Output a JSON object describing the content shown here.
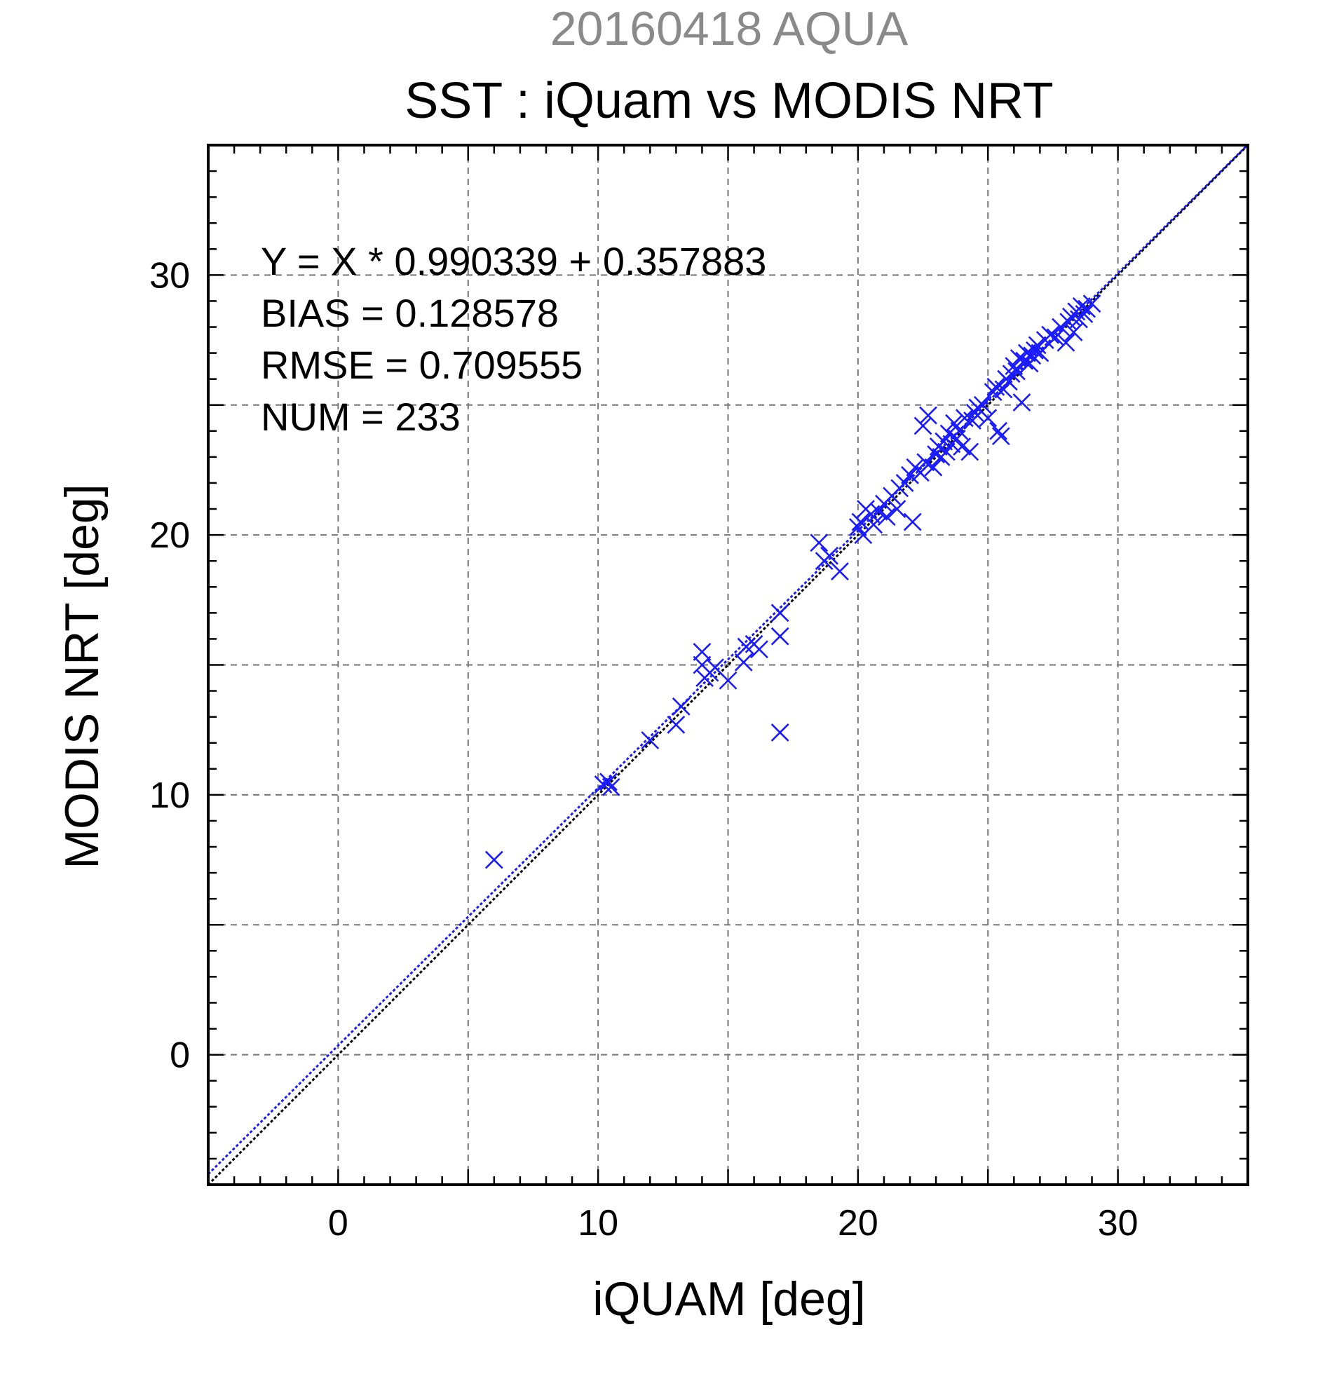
{
  "chart_data": {
    "type": "scatter",
    "supertitle": "20160418 AQUA",
    "title": "SST : iQuam vs MODIS NRT",
    "xlabel": "iQUAM [deg]",
    "ylabel": "MODIS NRT [deg]",
    "xlim": [
      -5,
      35
    ],
    "ylim": [
      -5,
      35
    ],
    "xticks": [
      0,
      10,
      20,
      30
    ],
    "yticks": [
      0,
      10,
      20,
      30
    ],
    "grid": true,
    "marker": "x",
    "point_color": "#1a1aff",
    "fit_line_color": "#1a1aff",
    "identity_line_color": "#000000",
    "fit": {
      "slope": 0.990339,
      "intercept": 0.357883
    },
    "stats": [
      "Y = X * 0.990339 + 0.357883",
      "BIAS = 0.128578",
      "RMSE = 0.709555",
      "NUM = 233"
    ],
    "points": [
      [
        6.0,
        7.5
      ],
      [
        10.2,
        10.4
      ],
      [
        10.4,
        10.5
      ],
      [
        10.5,
        10.3
      ],
      [
        12.0,
        12.1
      ],
      [
        13.0,
        12.7
      ],
      [
        13.2,
        13.4
      ],
      [
        14.0,
        15.5
      ],
      [
        14.0,
        15.0
      ],
      [
        14.1,
        14.5
      ],
      [
        14.3,
        14.7
      ],
      [
        14.5,
        14.9
      ],
      [
        15.0,
        14.4
      ],
      [
        15.6,
        15.1
      ],
      [
        15.7,
        15.7
      ],
      [
        16.0,
        15.8
      ],
      [
        16.2,
        15.6
      ],
      [
        17.0,
        17.0
      ],
      [
        17.0,
        16.1
      ],
      [
        17.0,
        12.4
      ],
      [
        18.5,
        19.7
      ],
      [
        18.7,
        19.0
      ],
      [
        18.9,
        19.2
      ],
      [
        19.3,
        18.6
      ],
      [
        20.0,
        20.3
      ],
      [
        20.1,
        20.5
      ],
      [
        20.2,
        20.0
      ],
      [
        20.3,
        21.0
      ],
      [
        20.5,
        20.8
      ],
      [
        20.6,
        20.4
      ],
      [
        20.8,
        20.9
      ],
      [
        21.0,
        21.2
      ],
      [
        21.1,
        20.7
      ],
      [
        21.3,
        21.5
      ],
      [
        21.5,
        21.0
      ],
      [
        21.6,
        21.8
      ],
      [
        21.8,
        22.0
      ],
      [
        22.0,
        22.3
      ],
      [
        22.1,
        20.5
      ],
      [
        22.2,
        22.6
      ],
      [
        22.4,
        22.4
      ],
      [
        22.5,
        24.2
      ],
      [
        22.6,
        22.8
      ],
      [
        22.7,
        24.6
      ],
      [
        22.9,
        22.6
      ],
      [
        23.0,
        23.1
      ],
      [
        23.1,
        23.4
      ],
      [
        23.2,
        23.0
      ],
      [
        23.3,
        23.6
      ],
      [
        23.4,
        23.2
      ],
      [
        23.5,
        23.9
      ],
      [
        23.6,
        23.5
      ],
      [
        23.7,
        24.3
      ],
      [
        23.8,
        23.7
      ],
      [
        23.9,
        24.0
      ],
      [
        24.0,
        23.4
      ],
      [
        24.1,
        24.5
      ],
      [
        24.3,
        23.2
      ],
      [
        24.4,
        24.4
      ],
      [
        24.5,
        24.7
      ],
      [
        24.6,
        24.9
      ],
      [
        24.8,
        25.0
      ],
      [
        25.0,
        24.5
      ],
      [
        25.2,
        25.5
      ],
      [
        25.3,
        25.7
      ],
      [
        25.4,
        24.0
      ],
      [
        25.5,
        23.8
      ],
      [
        25.6,
        25.6
      ],
      [
        25.7,
        26.0
      ],
      [
        25.8,
        25.9
      ],
      [
        25.9,
        26.2
      ],
      [
        26.0,
        26.5
      ],
      [
        26.1,
        26.3
      ],
      [
        26.2,
        26.8
      ],
      [
        26.3,
        25.1
      ],
      [
        26.4,
        26.7
      ],
      [
        26.5,
        27.0
      ],
      [
        26.6,
        26.6
      ],
      [
        26.7,
        26.9
      ],
      [
        26.8,
        27.1
      ],
      [
        26.9,
        27.3
      ],
      [
        27.0,
        27.0
      ],
      [
        27.2,
        27.5
      ],
      [
        27.4,
        27.7
      ],
      [
        27.6,
        27.6
      ],
      [
        27.8,
        28.0
      ],
      [
        28.0,
        27.4
      ],
      [
        28.1,
        28.2
      ],
      [
        28.2,
        28.4
      ],
      [
        28.3,
        27.8
      ],
      [
        28.4,
        28.6
      ],
      [
        28.5,
        28.3
      ],
      [
        28.6,
        28.8
      ],
      [
        28.7,
        28.5
      ],
      [
        28.8,
        28.7
      ],
      [
        29.0,
        28.9
      ]
    ]
  }
}
